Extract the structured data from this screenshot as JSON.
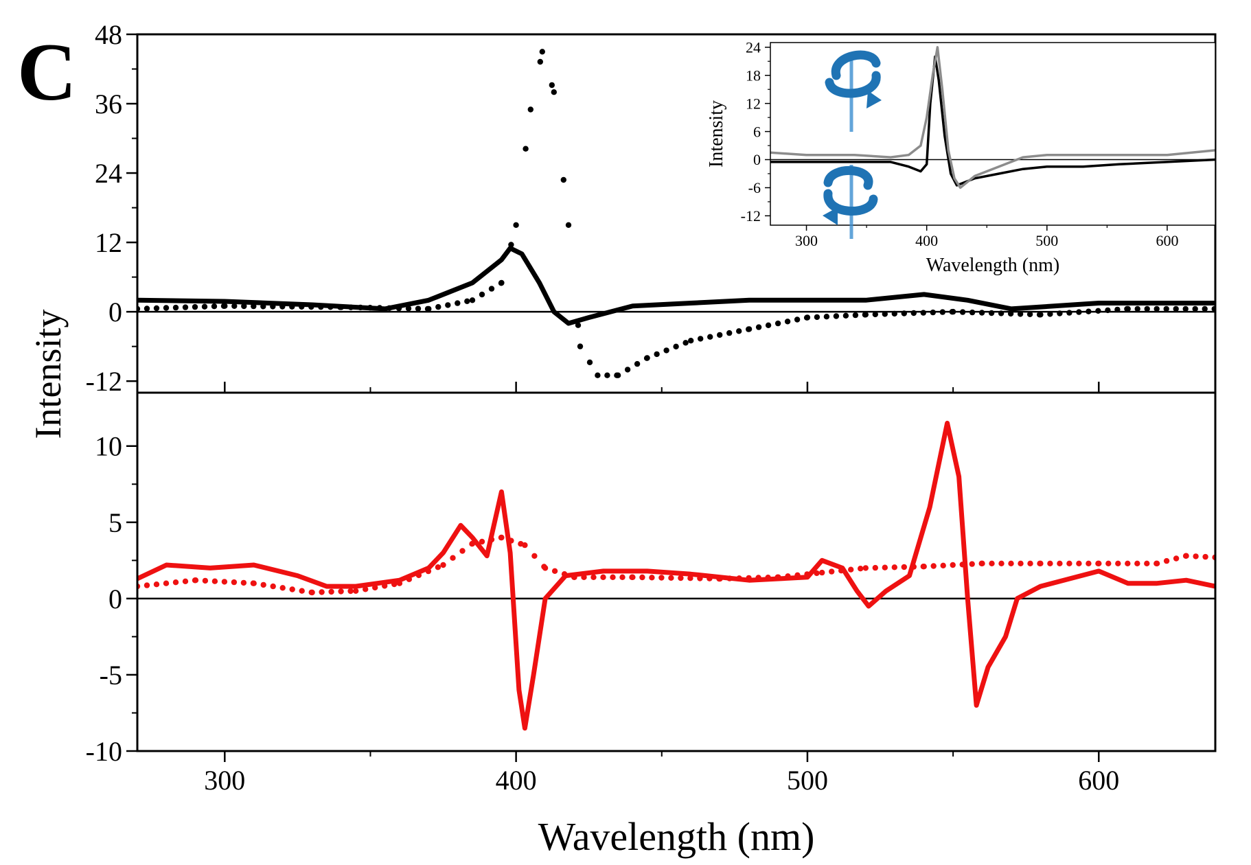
{
  "panel_label": "C",
  "colors": {
    "black": "#000000",
    "red": "#ee1111",
    "gray": "#8c8c8c",
    "icon_blue": "#1f73b4"
  },
  "icons": [
    "clockwise-rotation-icon",
    "counterclockwise-rotation-icon"
  ],
  "chart_data": [
    {
      "name_id": "top-panel",
      "type": "line",
      "xlabel": "Wavelength (nm)",
      "ylabel": "Intensity",
      "xlim": [
        270,
        640
      ],
      "ylim": [
        -14,
        48
      ],
      "yticks": [
        -12,
        0,
        12,
        24,
        36,
        48
      ],
      "yticklabels": [
        "-12",
        "0",
        "12",
        "24",
        "36",
        "48"
      ],
      "series": [
        {
          "style": "solid",
          "color": "#000000",
          "x": [
            270,
            300,
            330,
            355,
            370,
            385,
            395,
            398,
            402,
            408,
            413,
            418,
            425,
            440,
            460,
            480,
            500,
            520,
            540,
            555,
            570,
            600,
            640
          ],
          "y": [
            2,
            1.8,
            1.2,
            0.5,
            2,
            5,
            9,
            11,
            10,
            5,
            0,
            -2,
            -1,
            1,
            1.5,
            2,
            2,
            2,
            3,
            2,
            0.5,
            1.5,
            1.5
          ]
        },
        {
          "style": "dotted",
          "color": "#000000",
          "x": [
            270,
            300,
            340,
            370,
            385,
            395,
            400,
            405,
            409,
            413,
            418,
            422,
            428,
            435,
            445,
            460,
            480,
            500,
            520,
            550,
            580,
            610,
            640
          ],
          "y": [
            0.5,
            1,
            0.8,
            0.5,
            2,
            5,
            15,
            35,
            45,
            38,
            15,
            -6,
            -11,
            -11,
            -8,
            -5,
            -3,
            -1,
            -0.5,
            0,
            -0.5,
            0.5,
            0.5
          ]
        }
      ]
    },
    {
      "name_id": "bottom-panel",
      "type": "line",
      "xlabel": "Wavelength (nm)",
      "ylabel": "Intensity",
      "xlim": [
        270,
        640
      ],
      "ylim": [
        -10,
        13.5
      ],
      "xticks": [
        300,
        400,
        500,
        600
      ],
      "xticklabels": [
        "300",
        "400",
        "500",
        "600"
      ],
      "yticks": [
        -10,
        -5,
        0,
        5,
        10
      ],
      "yticklabels": [
        "-10",
        "-5",
        "0",
        "5",
        "10"
      ],
      "series": [
        {
          "style": "solid",
          "color": "#ee1111",
          "x": [
            270,
            280,
            295,
            310,
            325,
            335,
            345,
            360,
            370,
            375,
            381,
            385,
            390,
            395,
            398,
            401,
            403,
            406,
            410,
            417,
            430,
            445,
            460,
            480,
            500,
            505,
            512,
            517,
            521,
            527,
            535,
            542,
            548,
            552,
            555,
            558,
            562,
            568,
            572,
            580,
            590,
            600,
            610,
            620,
            630,
            640
          ],
          "y": [
            1.3,
            2.2,
            2.0,
            2.2,
            1.5,
            0.8,
            0.8,
            1.2,
            2.0,
            3.0,
            4.8,
            4.0,
            2.8,
            7.0,
            3.0,
            -6.0,
            -8.5,
            -5.0,
            0.0,
            1.5,
            1.8,
            1.8,
            1.6,
            1.2,
            1.4,
            2.5,
            2.0,
            0.5,
            -0.5,
            0.5,
            1.5,
            6.0,
            11.5,
            8.0,
            0.0,
            -7.0,
            -4.5,
            -2.5,
            0.0,
            0.8,
            1.3,
            1.8,
            1.0,
            1.0,
            1.2,
            0.8
          ]
        },
        {
          "style": "dotted",
          "color": "#ee1111",
          "x": [
            270,
            290,
            310,
            330,
            345,
            360,
            375,
            385,
            395,
            403,
            410,
            420,
            440,
            470,
            490,
            505,
            520,
            540,
            560,
            580,
            600,
            620,
            630,
            640
          ],
          "y": [
            0.8,
            1.2,
            1.0,
            0.4,
            0.5,
            1.0,
            2.2,
            3.6,
            4.0,
            3.5,
            2.0,
            1.4,
            1.4,
            1.3,
            1.4,
            1.7,
            2.0,
            2.1,
            2.3,
            2.3,
            2.3,
            2.3,
            2.8,
            2.7
          ]
        }
      ]
    },
    {
      "name_id": "inset",
      "type": "line",
      "xlabel": "Wavelength (nm)",
      "ylabel": "Intensity",
      "xlim": [
        270,
        640
      ],
      "ylim": [
        -14,
        25
      ],
      "xticks": [
        300,
        400,
        500,
        600
      ],
      "xticklabels": [
        "300",
        "400",
        "500",
        "600"
      ],
      "yticks": [
        -12,
        -6,
        0,
        6,
        12,
        18,
        24
      ],
      "yticklabels": [
        "-12",
        "-6",
        "0",
        "6",
        "12",
        "18",
        "24"
      ],
      "series": [
        {
          "style": "solid",
          "color": "#000000",
          "x": [
            270,
            300,
            340,
            370,
            385,
            395,
            400,
            403,
            407,
            410,
            415,
            420,
            425,
            430,
            440,
            460,
            480,
            500,
            530,
            560,
            600,
            640
          ],
          "y": [
            -0.5,
            -0.5,
            -0.5,
            -0.5,
            -1.5,
            -2.5,
            -1,
            12,
            22,
            17,
            5,
            -3,
            -5.5,
            -5,
            -4,
            -3,
            -2,
            -1.5,
            -1.5,
            -1,
            -0.5,
            0
          ]
        },
        {
          "style": "solid",
          "color": "#8c8c8c",
          "x": [
            270,
            300,
            340,
            370,
            385,
            395,
            400,
            405,
            409,
            413,
            418,
            423,
            428,
            440,
            460,
            480,
            500,
            530,
            560,
            600,
            640
          ],
          "y": [
            1.5,
            1,
            1,
            0.5,
            1,
            3,
            9,
            18,
            24,
            15,
            2,
            -4,
            -6,
            -3.5,
            -1.5,
            0.5,
            1,
            1,
            1,
            1,
            2
          ]
        }
      ]
    }
  ]
}
